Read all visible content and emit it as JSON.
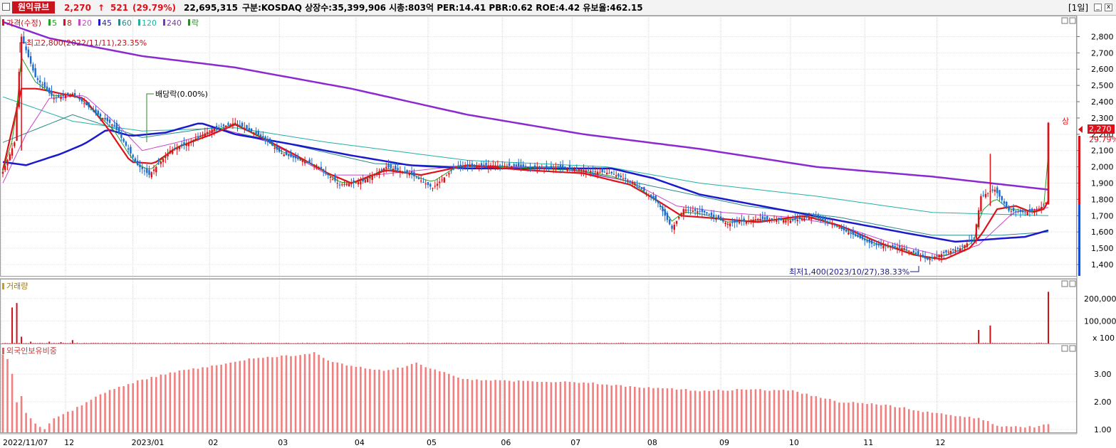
{
  "header": {
    "name": "원익큐브",
    "price": "2,270",
    "arrow": "↑",
    "change": "521",
    "change_pct": "(29.79%)",
    "volume": "22,695,315",
    "info": "구분:KOSDAQ 상장수:35,399,906 시총:803억 PER:14.41 PBR:0.62 ROE:4.42 유보율:462.15",
    "period": "[1일]",
    "min_btn": "_",
    "close_btn": "x"
  },
  "legend": {
    "price_label": "가격(수정)",
    "ma": [
      {
        "label": "5",
        "color": "#22a022"
      },
      {
        "label": "8",
        "color": "#e01018"
      },
      {
        "label": "20",
        "color": "#cc44cc"
      },
      {
        "label": "45",
        "color": "#1a1acc"
      },
      {
        "label": "60",
        "color": "#2a8a8a"
      },
      {
        "label": "120",
        "color": "#22b0a8"
      },
      {
        "label": "240",
        "color": "#8a2ad0"
      }
    ],
    "ex_label": "락"
  },
  "annotations": {
    "high": "최고2,800(2022/11/11),23.35%",
    "dividend": "배당락(0.00%)",
    "low": "최저1,400(2023/10/27),38.33%",
    "limit_up": "상"
  },
  "price_tag": {
    "value": "2,270",
    "pct": "29.79%"
  },
  "volume_panel": {
    "title": "거래량"
  },
  "foreign_panel": {
    "title": "외국인보유비중"
  },
  "chart_data": [
    {
      "type": "candlestick",
      "title": "가격(수정)",
      "y_ticks": [
        "2,800",
        "2,700",
        "2,600",
        "2,500",
        "2,400",
        "2,300",
        "2,200",
        "2,100",
        "2,000",
        "1,900",
        "1,800",
        "1,700",
        "1,600",
        "1,500",
        "1,400"
      ],
      "ylim": [
        1330,
        2850
      ],
      "x_ticks": [
        "2022/11/07",
        "12",
        "2023/01",
        "02",
        "03",
        "04",
        "05",
        "06",
        "07",
        "08",
        "09",
        "10",
        "11",
        "12"
      ],
      "price_anchors": [
        [
          0,
          1970
        ],
        [
          5,
          2150
        ],
        [
          8,
          2800
        ],
        [
          14,
          2550
        ],
        [
          22,
          2420
        ],
        [
          30,
          2450
        ],
        [
          40,
          2330
        ],
        [
          48,
          2250
        ],
        [
          58,
          2010
        ],
        [
          63,
          1950
        ],
        [
          72,
          2100
        ],
        [
          80,
          2150
        ],
        [
          90,
          2230
        ],
        [
          100,
          2270
        ],
        [
          112,
          2180
        ],
        [
          120,
          2080
        ],
        [
          135,
          2010
        ],
        [
          145,
          1890
        ],
        [
          155,
          1910
        ],
        [
          165,
          2000
        ],
        [
          175,
          1960
        ],
        [
          185,
          1870
        ],
        [
          195,
          2000
        ],
        [
          210,
          2010
        ],
        [
          225,
          2000
        ],
        [
          245,
          1990
        ],
        [
          262,
          1960
        ],
        [
          272,
          1900
        ],
        [
          282,
          1780
        ],
        [
          288,
          1620
        ],
        [
          293,
          1740
        ],
        [
          302,
          1720
        ],
        [
          312,
          1650
        ],
        [
          325,
          1680
        ],
        [
          340,
          1670
        ],
        [
          350,
          1700
        ],
        [
          362,
          1610
        ],
        [
          375,
          1520
        ],
        [
          388,
          1500
        ],
        [
          398,
          1430
        ],
        [
          405,
          1470
        ],
        [
          412,
          1500
        ],
        [
          418,
          1560
        ],
        [
          421,
          1820
        ],
        [
          427,
          1860
        ],
        [
          433,
          1730
        ],
        [
          440,
          1720
        ],
        [
          446,
          1740
        ],
        [
          449,
          1780
        ],
        [
          450,
          2270
        ]
      ],
      "ma_anchors": {
        "ma8": [
          [
            0,
            1980
          ],
          [
            8,
            2480
          ],
          [
            15,
            2480
          ],
          [
            25,
            2450
          ],
          [
            35,
            2420
          ],
          [
            45,
            2240
          ],
          [
            55,
            2030
          ],
          [
            65,
            2020
          ],
          [
            75,
            2120
          ],
          [
            90,
            2200
          ],
          [
            100,
            2260
          ],
          [
            110,
            2190
          ],
          [
            125,
            2080
          ],
          [
            140,
            1960
          ],
          [
            150,
            1900
          ],
          [
            165,
            1980
          ],
          [
            180,
            1950
          ],
          [
            200,
            2010
          ],
          [
            225,
            1980
          ],
          [
            250,
            1960
          ],
          [
            270,
            1890
          ],
          [
            282,
            1790
          ],
          [
            292,
            1700
          ],
          [
            310,
            1680
          ],
          [
            325,
            1660
          ],
          [
            345,
            1700
          ],
          [
            360,
            1640
          ],
          [
            378,
            1530
          ],
          [
            392,
            1460
          ],
          [
            405,
            1430
          ],
          [
            416,
            1500
          ],
          [
            421,
            1580
          ],
          [
            428,
            1740
          ],
          [
            436,
            1760
          ],
          [
            443,
            1720
          ],
          [
            448,
            1740
          ],
          [
            450,
            1790
          ]
        ],
        "ma45": [
          [
            0,
            2030
          ],
          [
            10,
            2010
          ],
          [
            25,
            2080
          ],
          [
            35,
            2140
          ],
          [
            45,
            2230
          ],
          [
            55,
            2190
          ],
          [
            70,
            2210
          ],
          [
            85,
            2270
          ],
          [
            100,
            2200
          ],
          [
            120,
            2150
          ],
          [
            150,
            2070
          ],
          [
            175,
            2010
          ],
          [
            200,
            1990
          ],
          [
            230,
            1990
          ],
          [
            262,
            1990
          ],
          [
            280,
            1930
          ],
          [
            300,
            1830
          ],
          [
            330,
            1750
          ],
          [
            360,
            1670
          ],
          [
            390,
            1590
          ],
          [
            410,
            1540
          ],
          [
            420,
            1550
          ],
          [
            440,
            1570
          ],
          [
            450,
            1610
          ]
        ],
        "ma240": [
          [
            0,
            2890
          ],
          [
            20,
            2790
          ],
          [
            60,
            2680
          ],
          [
            100,
            2610
          ],
          [
            150,
            2480
          ],
          [
            200,
            2320
          ],
          [
            250,
            2200
          ],
          [
            300,
            2110
          ],
          [
            350,
            2000
          ],
          [
            400,
            1940
          ],
          [
            450,
            1860
          ]
        ],
        "ma120": [
          [
            0,
            2430
          ],
          [
            30,
            2280
          ],
          [
            60,
            2220
          ],
          [
            100,
            2240
          ],
          [
            140,
            2150
          ],
          [
            200,
            2040
          ],
          [
            260,
            2000
          ],
          [
            300,
            1900
          ],
          [
            350,
            1820
          ],
          [
            400,
            1720
          ],
          [
            450,
            1700
          ]
        ],
        "ma20": [
          [
            0,
            1900
          ],
          [
            10,
            2200
          ],
          [
            20,
            2420
          ],
          [
            35,
            2440
          ],
          [
            50,
            2250
          ],
          [
            60,
            2100
          ],
          [
            75,
            2150
          ],
          [
            95,
            2230
          ],
          [
            115,
            2150
          ],
          [
            140,
            1950
          ],
          [
            160,
            1950
          ],
          [
            200,
            2010
          ],
          [
            240,
            1990
          ],
          [
            270,
            1910
          ],
          [
            290,
            1760
          ],
          [
            310,
            1720
          ],
          [
            340,
            1690
          ],
          [
            360,
            1640
          ],
          [
            385,
            1520
          ],
          [
            405,
            1450
          ],
          [
            420,
            1520
          ],
          [
            435,
            1720
          ],
          [
            450,
            1750
          ]
        ],
        "ma60": [
          [
            0,
            2150
          ],
          [
            30,
            2320
          ],
          [
            60,
            2180
          ],
          [
            90,
            2240
          ],
          [
            120,
            2150
          ],
          [
            160,
            2020
          ],
          [
            200,
            2000
          ],
          [
            240,
            2000
          ],
          [
            280,
            1880
          ],
          [
            320,
            1760
          ],
          [
            360,
            1690
          ],
          [
            400,
            1580
          ],
          [
            430,
            1580
          ],
          [
            450,
            1600
          ]
        ]
      }
    },
    {
      "type": "bar",
      "title": "거래량",
      "y_ticks": [
        "200,000",
        "100,000",
        "x 100"
      ],
      "ylim": [
        0,
        250000
      ],
      "spikes": [
        [
          4,
          160000
        ],
        [
          6,
          180000
        ],
        [
          8,
          30000
        ],
        [
          12,
          8000
        ],
        [
          20,
          8000
        ],
        [
          25,
          6000
        ],
        [
          30,
          15000
        ],
        [
          420,
          60000
        ],
        [
          425,
          80000
        ],
        [
          450,
          230000
        ]
      ]
    },
    {
      "type": "bar",
      "title": "외국인보유비중",
      "y_ticks": [
        "3.00",
        "2.00",
        "1.00"
      ],
      "ylim": [
        0.9,
        3.8
      ],
      "anchors": [
        [
          0,
          3.7
        ],
        [
          3,
          3.5
        ],
        [
          6,
          2.0
        ],
        [
          8,
          2.2
        ],
        [
          10,
          1.6
        ],
        [
          14,
          1.2
        ],
        [
          18,
          1.0
        ],
        [
          22,
          1.4
        ],
        [
          30,
          1.7
        ],
        [
          45,
          2.4
        ],
        [
          60,
          2.8
        ],
        [
          75,
          3.1
        ],
        [
          90,
          3.3
        ],
        [
          110,
          3.6
        ],
        [
          130,
          3.7
        ],
        [
          134,
          3.8
        ],
        [
          140,
          3.5
        ],
        [
          150,
          3.3
        ],
        [
          165,
          3.1
        ],
        [
          178,
          3.4
        ],
        [
          188,
          3.1
        ],
        [
          200,
          2.8
        ],
        [
          225,
          2.75
        ],
        [
          250,
          2.7
        ],
        [
          270,
          2.55
        ],
        [
          285,
          2.5
        ],
        [
          300,
          2.4
        ],
        [
          320,
          2.45
        ],
        [
          340,
          2.4
        ],
        [
          360,
          2.0
        ],
        [
          380,
          1.9
        ],
        [
          400,
          1.6
        ],
        [
          410,
          1.5
        ],
        [
          420,
          1.4
        ],
        [
          430,
          1.1
        ],
        [
          445,
          1.1
        ],
        [
          450,
          1.2
        ]
      ]
    }
  ]
}
